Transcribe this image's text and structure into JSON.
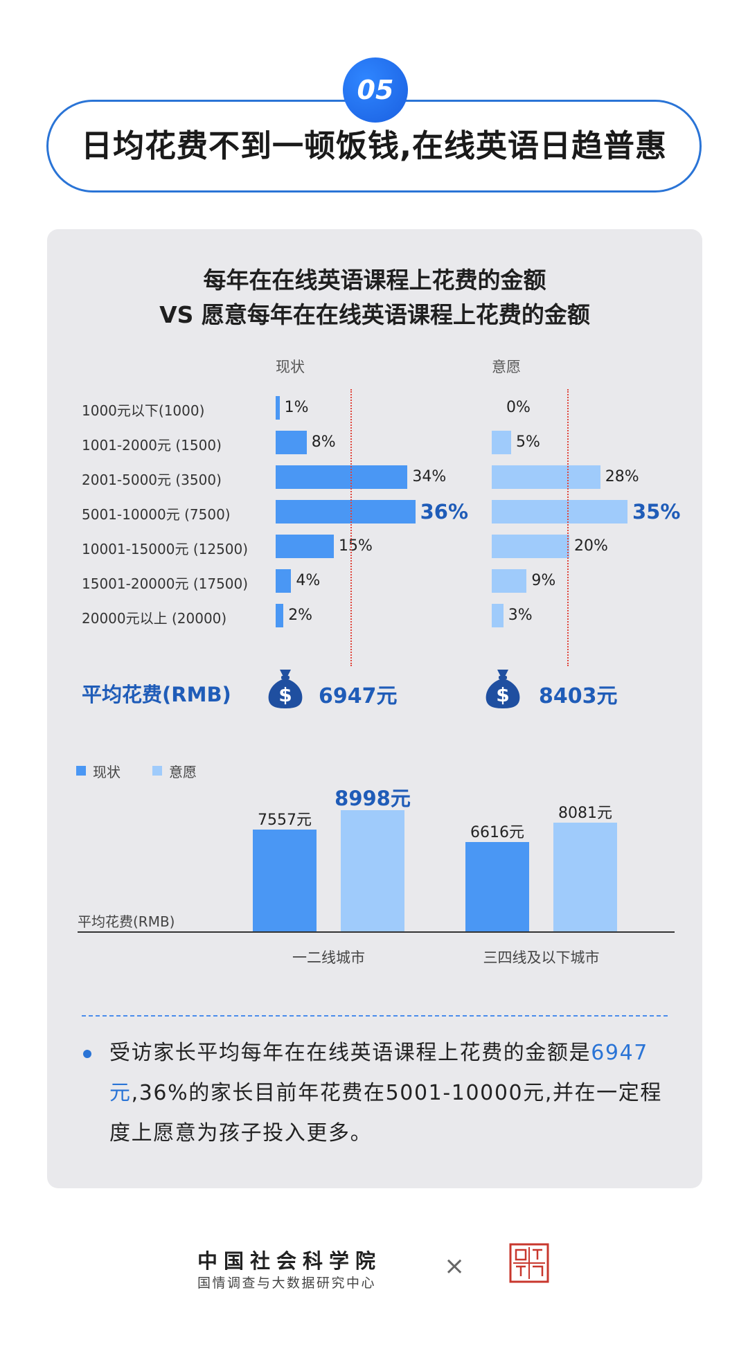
{
  "header": {
    "badge": "05",
    "title": "日均花费不到一顿饭钱,在线英语日趋普惠"
  },
  "chart_data": [
    {
      "type": "bar",
      "orientation": "horizontal",
      "title": "每年在在线英语课程上花费的金额",
      "subtitle": "VS 愿意每年在在线英语课程上花费的金额",
      "categories": [
        "1000元以下(1000)",
        "1001-2000元 (1500)",
        "2001-5000元 (3500)",
        "5001-10000元 (7500)",
        "10001-15000元 (12500)",
        "15001-20000元 (17500)",
        "20000元以上 (20000)"
      ],
      "series": [
        {
          "name": "现状",
          "values": [
            1,
            8,
            34,
            36,
            15,
            4,
            2
          ],
          "labels": [
            "1%",
            "8%",
            "34%",
            "36%",
            "15%",
            "4%",
            "2%"
          ],
          "color": "#4a97f4"
        },
        {
          "name": "意愿",
          "values": [
            0,
            5,
            28,
            35,
            20,
            9,
            3
          ],
          "labels": [
            "0%",
            "5%",
            "28%",
            "35%",
            "20%",
            "9%",
            "3%"
          ],
          "color": "#9fcbfb"
        }
      ],
      "highlight_index": 3,
      "reference_line_color": "#e0443a",
      "average_label": "平均花费(RMB)",
      "averages": [
        "6947元",
        "8403元"
      ]
    },
    {
      "type": "bar",
      "categories": [
        "一二线城市",
        "三四线及以下城市"
      ],
      "series": [
        {
          "name": "现状",
          "values": [
            7557,
            6616
          ],
          "labels": [
            "7557元",
            "6616元"
          ],
          "color": "#4a97f4"
        },
        {
          "name": "意愿",
          "values": [
            8998,
            8081
          ],
          "labels": [
            "8998元",
            "8081元"
          ],
          "color": "#9fcbfb"
        }
      ],
      "ylabel": "平均花费(RMB)",
      "highlight": "8998元",
      "legend": "top-left"
    }
  ],
  "summary": {
    "part1": "受访家长平均每年在在线英语课程上花费的金额是",
    "highlight": "6947元",
    "part2": ",36%的家长目前年花费在5001-10000元,并在一定程度上愿意为孩子投入更多。"
  },
  "footer": {
    "org_name": "中国社会科学院",
    "org_sub": "国情调查与大数据研究中心",
    "times": "×",
    "partner_icon": "nanfang-zhoumo-seal"
  },
  "icons": {
    "money": "money-bag-icon"
  }
}
